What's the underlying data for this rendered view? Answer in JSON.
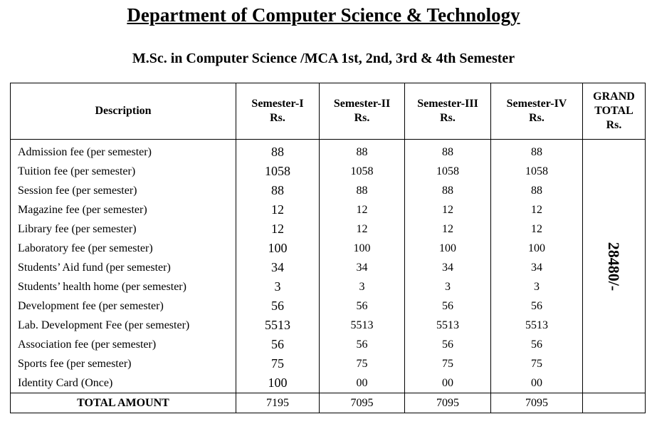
{
  "header": {
    "title": "Department of Computer Science & Technology",
    "subtitle": "M.Sc. in Computer Science /MCA  1st, 2nd, 3rd & 4th Semester"
  },
  "table": {
    "columns": {
      "description": "Description",
      "sem1": [
        "Semester-I",
        "Rs."
      ],
      "sem2": [
        "Semester-II",
        "Rs."
      ],
      "sem3": [
        "Semester-III",
        "Rs."
      ],
      "sem4": [
        "Semester-IV",
        "Rs."
      ],
      "grand": [
        "GRAND",
        "TOTAL",
        "Rs."
      ]
    },
    "rows": [
      {
        "desc": "Admission fee (per semester)",
        "s1": "88",
        "s2": "88",
        "s3": "88",
        "s4": "88"
      },
      {
        "desc": "Tuition fee (per semester)",
        "s1": "1058",
        "s2": "1058",
        "s3": "1058",
        "s4": "1058"
      },
      {
        "desc": "Session fee (per semester)",
        "s1": "88",
        "s2": "88",
        "s3": "88",
        "s4": "88"
      },
      {
        "desc": "Magazine fee (per semester)",
        "s1": "12",
        "s2": "12",
        "s3": "12",
        "s4": "12"
      },
      {
        "desc": "Library fee (per semester)",
        "s1": "12",
        "s2": "12",
        "s3": "12",
        "s4": "12"
      },
      {
        "desc": "Laboratory fee (per semester)",
        "s1": "100",
        "s2": "100",
        "s3": "100",
        "s4": "100"
      },
      {
        "desc": "Students’ Aid fund (per semester)",
        "s1": "34",
        "s2": "34",
        "s3": "34",
        "s4": "34"
      },
      {
        "desc": "Students’ health home (per semester)",
        "s1": "3",
        "s2": "3",
        "s3": "3",
        "s4": "3"
      },
      {
        "desc": "Development fee (per semester)",
        "s1": "56",
        "s2": "56",
        "s3": "56",
        "s4": "56"
      },
      {
        "desc": "Lab. Development Fee (per semester)",
        "s1": "5513",
        "s2": "5513",
        "s3": "5513",
        "s4": "5513"
      },
      {
        "desc": "Association fee (per semester)",
        "s1": "56",
        "s2": "56",
        "s3": "56",
        "s4": "56"
      },
      {
        "desc": "Sports fee (per semester)",
        "s1": "75",
        "s2": "75",
        "s3": "75",
        "s4": "75"
      },
      {
        "desc": "Identity Card (Once)",
        "s1": "100",
        "s2": "00",
        "s3": "00",
        "s4": "00"
      }
    ],
    "total": {
      "label": "TOTAL AMOUNT",
      "s1": "7195",
      "s2": "7095",
      "s3": "7095",
      "s4": "7095"
    },
    "grand_total": "28480/-"
  }
}
